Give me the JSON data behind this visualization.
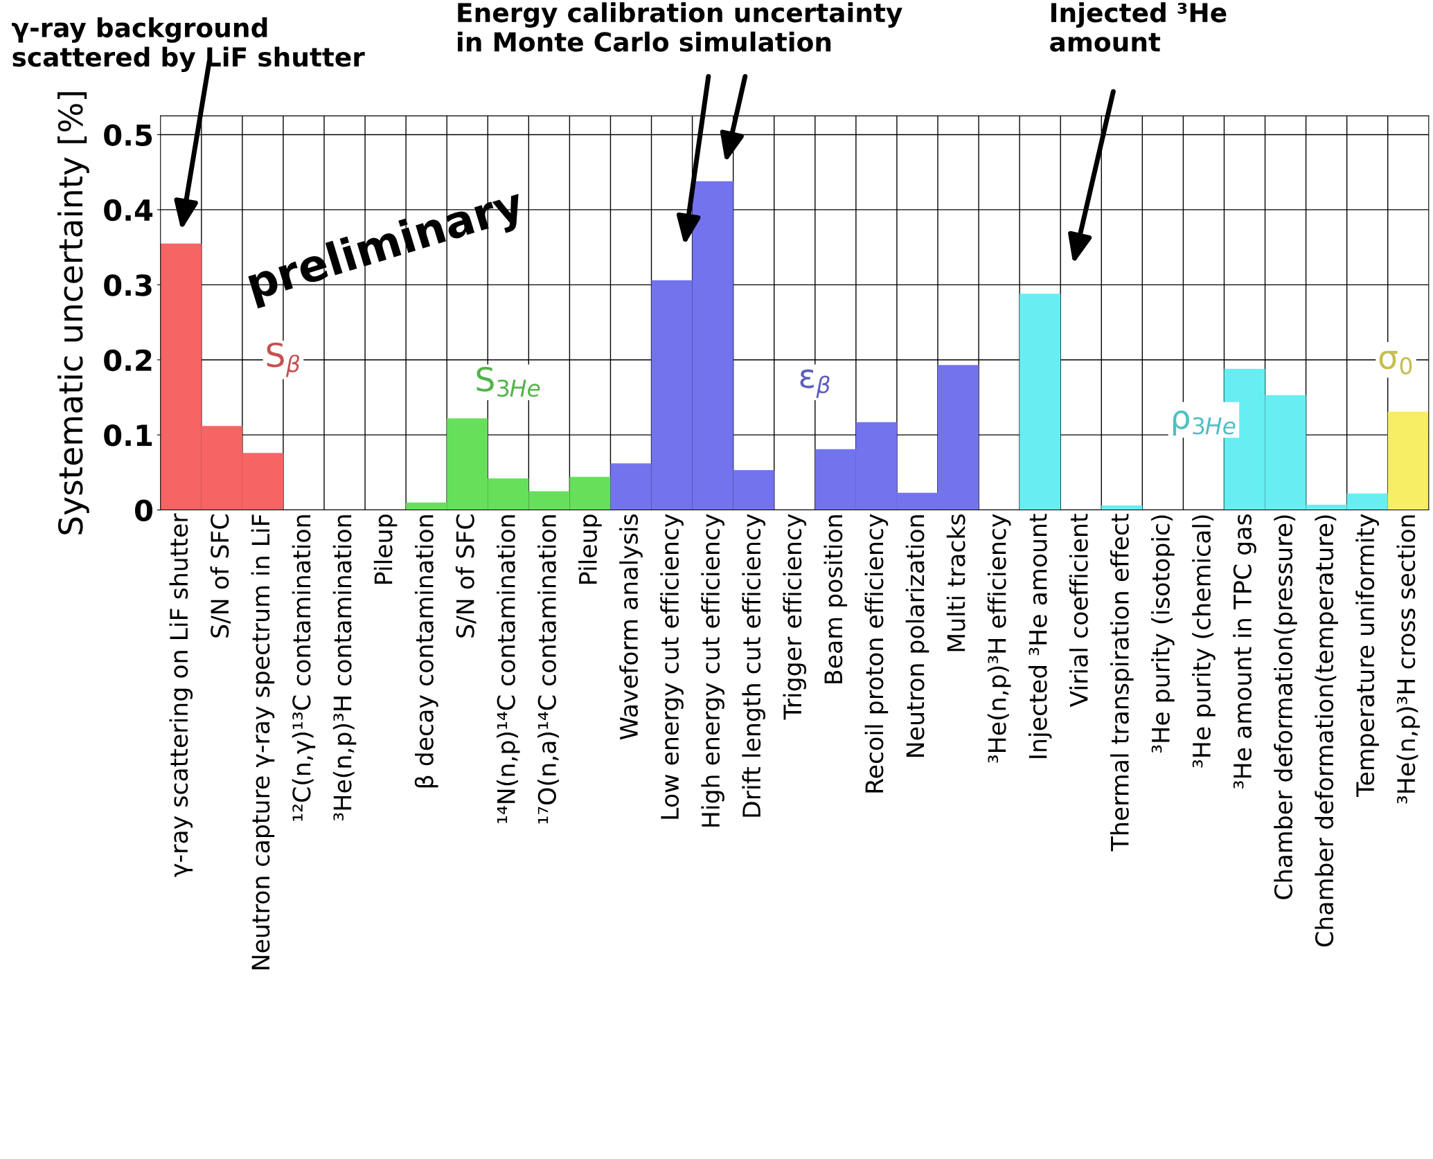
{
  "chart_data": {
    "type": "bar",
    "ylabel": "Systematic uncertainty [%]",
    "categories": [
      "γ-ray scattering on LiF shutter",
      "S/N of SFC",
      "Neutron capture γ-ray spectrum in LiF",
      "¹²C(n,γ)¹³C contamination",
      "³He(n,p)³H contamination",
      "Pileup",
      "β decay contamination",
      "S/N of SFC",
      "¹⁴N(n,p)¹⁴C contamination",
      "¹⁷O(n,a)¹⁴C contamination",
      "Pileup",
      "Waveform analysis",
      "Low energy cut efficiency",
      "High energy cut efficiency",
      "Drift length cut efficiency",
      "Trigger efficiency",
      "Beam position",
      "Recoil proton efficiency",
      "Neutron polarization",
      "Multi tracks",
      "³He(n,p)³H efficiency",
      "Injected ³He amount",
      "Virial coefficient",
      "Thermal transpiration effect",
      "³He purity (isotopic)",
      "³He purity (chemical)",
      "³He amount in TPC gas",
      "Chamber deformation(pressure)",
      "Chamber deformation(temperature)",
      "Temperature uniformity",
      "³He(n,p)³H cross section"
    ],
    "series": [
      {
        "name": "S$_{β}$",
        "color": "#f76464",
        "values": [
          0.355,
          0.112,
          0.076,
          0,
          0,
          0,
          null,
          null,
          null,
          null,
          null,
          null,
          null,
          null,
          null,
          null,
          null,
          null,
          null,
          null,
          null,
          null,
          null,
          null,
          null,
          null,
          null,
          null,
          null,
          null,
          null
        ]
      },
      {
        "name": "S$_{3He}$",
        "color": "#66e05a",
        "values": [
          null,
          null,
          null,
          null,
          null,
          null,
          0.01,
          0.122,
          0.042,
          0.025,
          0.044,
          null,
          null,
          null,
          null,
          null,
          null,
          null,
          null,
          null,
          null,
          null,
          null,
          null,
          null,
          null,
          null,
          null,
          null,
          null,
          null
        ]
      },
      {
        "name": "ε$_{β}$",
        "color": "#7373ee",
        "values": [
          null,
          null,
          null,
          null,
          null,
          null,
          null,
          null,
          null,
          null,
          null,
          0.062,
          0.306,
          0.438,
          0.053,
          0,
          0.081,
          0.117,
          0.023,
          0.193,
          0,
          null,
          null,
          null,
          null,
          null,
          null,
          null,
          null,
          null,
          null
        ]
      },
      {
        "name": "ρ$_{3He}$",
        "color": "#66eef2",
        "values": [
          null,
          null,
          null,
          null,
          null,
          null,
          null,
          null,
          null,
          null,
          null,
          null,
          null,
          null,
          null,
          null,
          null,
          null,
          null,
          null,
          null,
          0.288,
          0,
          0.006,
          0,
          0,
          0.188,
          0.153,
          0.007,
          0.022,
          null
        ]
      },
      {
        "name": "σ$_{0}$",
        "color": "#f7ee66",
        "values": [
          null,
          null,
          null,
          null,
          null,
          null,
          null,
          null,
          null,
          null,
          null,
          null,
          null,
          null,
          null,
          null,
          null,
          null,
          null,
          null,
          null,
          null,
          null,
          null,
          null,
          null,
          null,
          null,
          null,
          null,
          0.131
        ]
      }
    ],
    "ylim": [
      0,
      0.525
    ],
    "yticks": [
      {
        "value": 0,
        "label": "0"
      },
      0.1,
      0.2,
      0.3,
      0.4,
      0.5
    ],
    "grid": true,
    "annotations": [
      "γ-ray background\nscattered by LiF shutter",
      "Energy calibration uncertainty\nin Monte Carlo simulation",
      "Injected ³He\namount",
      "preliminary"
    ]
  }
}
